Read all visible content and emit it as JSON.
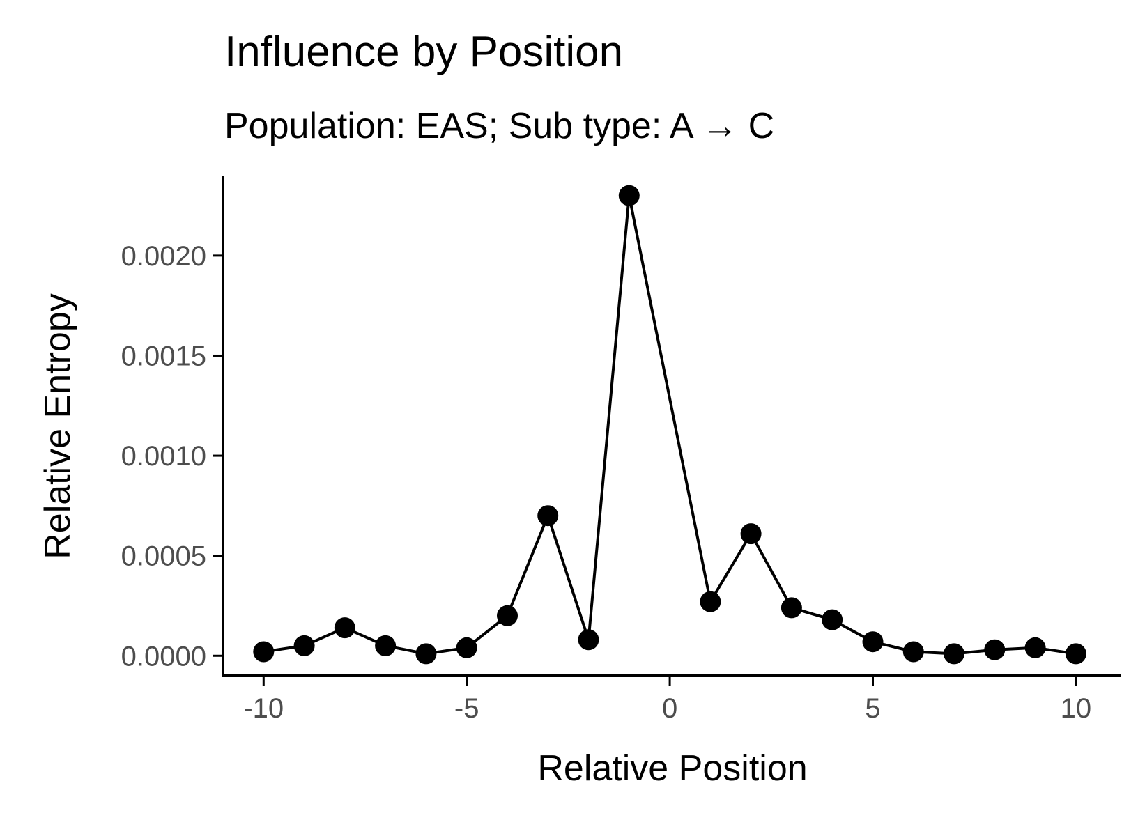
{
  "chart_data": {
    "type": "line",
    "title": "Influence by Position",
    "subtitle": "Population: EAS; Sub type: A → C",
    "xlabel": "Relative Position",
    "ylabel": "Relative Entropy",
    "x": [
      -10,
      -9,
      -8,
      -7,
      -6,
      -5,
      -4,
      -3,
      -2,
      -1,
      1,
      2,
      3,
      4,
      5,
      6,
      7,
      8,
      9,
      10
    ],
    "series": [
      {
        "values": [
          2e-05,
          5e-05,
          0.00014,
          5e-05,
          1e-05,
          4e-05,
          0.0002,
          0.0007,
          8e-05,
          0.0023,
          0.00027,
          0.00061,
          0.00024,
          0.00018,
          7e-05,
          2e-05,
          1e-05,
          3e-05,
          4e-05,
          1e-05
        ]
      }
    ],
    "xlim": [
      -11,
      11.1
    ],
    "ylim": [
      -0.0001,
      0.0024
    ],
    "xticks": [
      -10,
      -5,
      0,
      5,
      10
    ],
    "xtick_labels": [
      "-10",
      "-5",
      "0",
      "5",
      "10"
    ],
    "yticks": [
      0.0,
      0.0005,
      0.001,
      0.0015,
      0.002
    ],
    "ytick_labels": [
      "0.0000",
      "0.0005",
      "0.0010",
      "0.0015",
      "0.0020"
    ],
    "grid": false,
    "colors": {
      "line": "#000000",
      "point": "#000000",
      "tick_text": "#4d4d4d"
    }
  }
}
